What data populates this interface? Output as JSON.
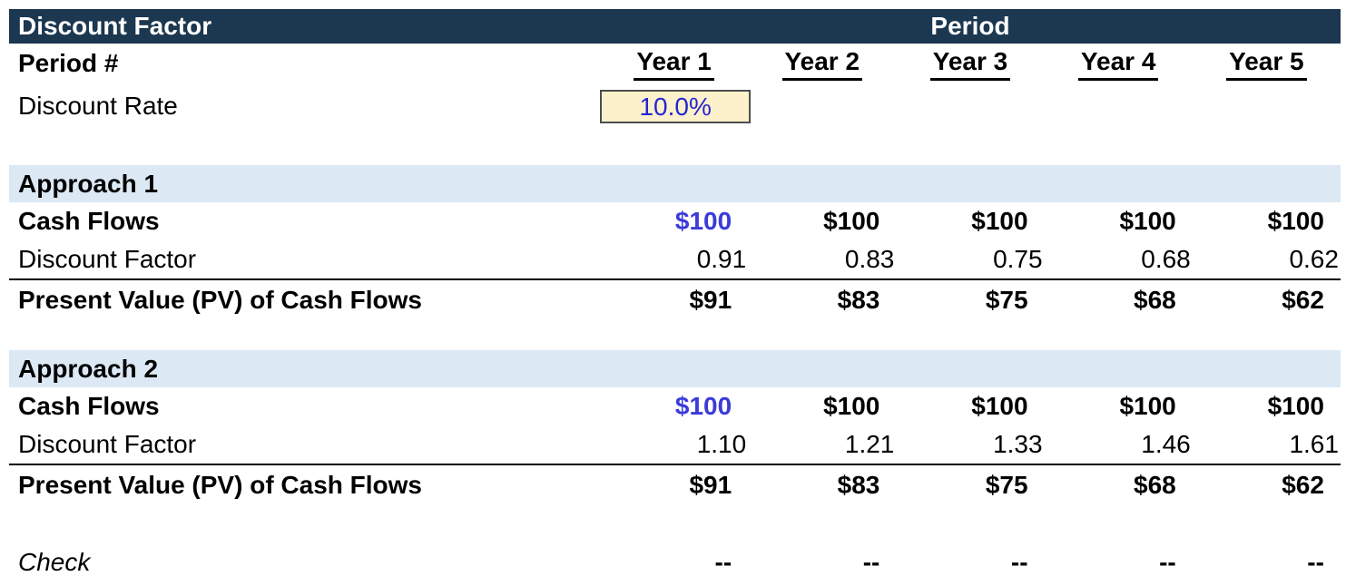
{
  "title_bar": {
    "title": "Discount Factor",
    "period_label": "Period"
  },
  "header": {
    "period_row_label": "Period #",
    "years": [
      "Year 1",
      "Year 2",
      "Year 3",
      "Year 4",
      "Year 5"
    ],
    "discount_rate_label": "Discount Rate",
    "discount_rate_value": "10.0%"
  },
  "sections": [
    {
      "name": "Approach 1",
      "rows": [
        {
          "label": "Cash Flows",
          "values": [
            "$100",
            "$100",
            "$100",
            "$100",
            "$100"
          ]
        },
        {
          "label": "Discount Factor",
          "values": [
            "0.91",
            "0.83",
            "0.75",
            "0.68",
            "0.62"
          ]
        },
        {
          "label": "Present Value (PV) of Cash Flows",
          "values": [
            "$91",
            "$83",
            "$75",
            "$68",
            "$62"
          ]
        }
      ]
    },
    {
      "name": "Approach 2",
      "rows": [
        {
          "label": "Cash Flows",
          "values": [
            "$100",
            "$100",
            "$100",
            "$100",
            "$100"
          ]
        },
        {
          "label": "Discount Factor",
          "values": [
            "1.10",
            "1.21",
            "1.33",
            "1.46",
            "1.61"
          ]
        },
        {
          "label": "Present Value (PV) of Cash Flows",
          "values": [
            "$91",
            "$83",
            "$75",
            "$68",
            "$62"
          ]
        }
      ]
    }
  ],
  "check": {
    "label": "Check",
    "values": [
      "--",
      "--",
      "--",
      "--",
      "--"
    ]
  },
  "colors": {
    "header_bg": "#1c3750",
    "section_bg": "#dce9f5",
    "accent_blue": "#3b3bda",
    "input_bg": "#fdf1cc",
    "input_text": "#2626d2"
  }
}
